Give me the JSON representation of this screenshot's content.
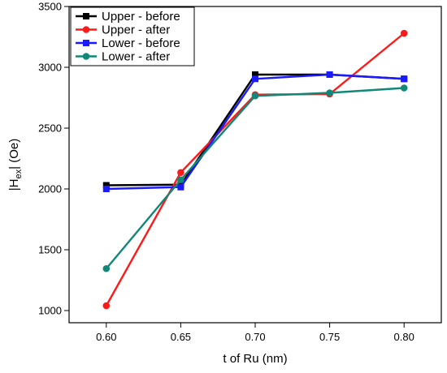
{
  "chart_data": {
    "type": "line",
    "xlabel": "t of Ru (nm)",
    "ylabel_prefix": "|H",
    "ylabel_sub": "ex",
    "ylabel_suffix": "| (Oe)",
    "x": [
      0.6,
      0.65,
      0.7,
      0.75,
      0.8
    ],
    "xticks": [
      "0.60",
      "0.65",
      "0.70",
      "0.75",
      "0.80"
    ],
    "xlim": [
      0.575,
      0.825
    ],
    "yticks": [
      "1000",
      "1500",
      "2000",
      "2500",
      "3000",
      "3500"
    ],
    "ylim": [
      900,
      3500
    ],
    "grid": false,
    "legend_position": "top-left",
    "series": [
      {
        "name": "Upper - before",
        "values": [
          2030,
          2035,
          2940,
          2940,
          2905
        ],
        "color": "#000000",
        "marker": "square"
      },
      {
        "name": "Upper - after",
        "values": [
          1040,
          2135,
          2775,
          2780,
          3280
        ],
        "color": "#ff1a1a",
        "marker": "circle"
      },
      {
        "name": "Lower - before",
        "values": [
          2000,
          2015,
          2905,
          2940,
          2905
        ],
        "color": "#1a1aff",
        "marker": "square"
      },
      {
        "name": "Lower - after",
        "values": [
          1345,
          2075,
          2765,
          2790,
          2830
        ],
        "color": "#118877",
        "marker": "circle"
      }
    ]
  }
}
